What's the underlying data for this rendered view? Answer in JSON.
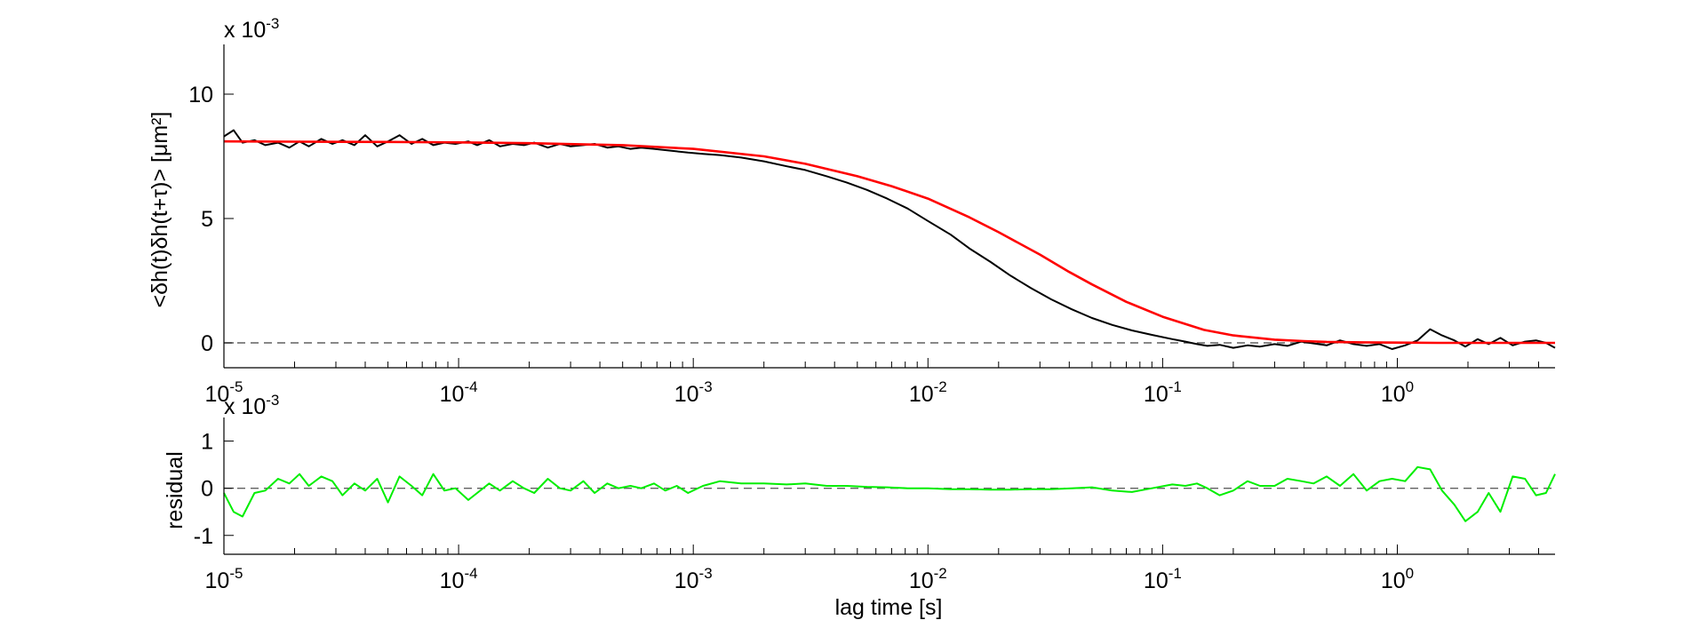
{
  "chart_data": [
    {
      "type": "line",
      "ylabel": "<δh(t)δh(t+τ)> [μm²]",
      "multiplier": {
        "prefix": "x 10",
        "exponent": "-3"
      },
      "xscale": "log",
      "xlim": [
        1e-05,
        4.7
      ],
      "ylim": [
        -1.0,
        12.0
      ],
      "yticks": [
        {
          "v": 0,
          "label": "0"
        },
        {
          "v": 5,
          "label": "5"
        },
        {
          "v": 10,
          "label": "10"
        }
      ],
      "xticks": [
        {
          "v": 1e-05,
          "base": "10",
          "exp": "-5"
        },
        {
          "v": 0.0001,
          "base": "10",
          "exp": "-4"
        },
        {
          "v": 0.001,
          "base": "10",
          "exp": "-3"
        },
        {
          "v": 0.01,
          "base": "10",
          "exp": "-2"
        },
        {
          "v": 0.1,
          "base": "10",
          "exp": "-1"
        },
        {
          "v": 1,
          "base": "10",
          "exp": "0"
        }
      ],
      "reference_line": {
        "y": 0,
        "style": "dashed",
        "color": "#606060"
      },
      "series": [
        {
          "role": "data",
          "color": "#000000",
          "x": [
            1e-05,
            1.1e-05,
            1.2e-05,
            1.35e-05,
            1.5e-05,
            1.7e-05,
            1.9e-05,
            2.1e-05,
            2.3e-05,
            2.6e-05,
            2.9e-05,
            3.2e-05,
            3.6e-05,
            4e-05,
            4.5e-05,
            5e-05,
            5.6e-05,
            6.3e-05,
            7e-05,
            7.8e-05,
            8.7e-05,
            9.7e-05,
            0.00011,
            0.00012,
            0.000135,
            0.00015,
            0.00017,
            0.00019,
            0.00021,
            0.00024,
            0.00027,
            0.0003,
            0.00034,
            0.00038,
            0.00043,
            0.00048,
            0.00054,
            0.0006,
            0.00068,
            0.00076,
            0.00085,
            0.00095,
            0.0011,
            0.0013,
            0.0016,
            0.002,
            0.0025,
            0.003,
            0.0037,
            0.0045,
            0.0055,
            0.0067,
            0.0082,
            0.01,
            0.0125,
            0.015,
            0.0185,
            0.0225,
            0.0275,
            0.0335,
            0.041,
            0.05,
            0.061,
            0.074,
            0.09,
            0.11,
            0.125,
            0.14,
            0.155,
            0.175,
            0.2,
            0.23,
            0.26,
            0.3,
            0.34,
            0.39,
            0.44,
            0.5,
            0.57,
            0.65,
            0.74,
            0.84,
            0.95,
            1.08,
            1.22,
            1.38,
            1.55,
            1.75,
            1.95,
            2.2,
            2.45,
            2.75,
            3.1,
            3.5,
            3.9,
            4.3,
            4.7
          ],
          "y": [
            8.3,
            8.55,
            8.05,
            8.15,
            7.95,
            8.05,
            7.85,
            8.1,
            7.9,
            8.2,
            8.0,
            8.15,
            7.95,
            8.35,
            7.9,
            8.1,
            8.35,
            8.0,
            8.2,
            7.95,
            8.05,
            8.0,
            8.1,
            7.95,
            8.15,
            7.9,
            8.0,
            7.95,
            8.05,
            7.85,
            8.0,
            7.9,
            7.95,
            8.0,
            7.85,
            7.9,
            7.8,
            7.85,
            7.8,
            7.75,
            7.7,
            7.65,
            7.6,
            7.55,
            7.45,
            7.3,
            7.1,
            6.95,
            6.7,
            6.45,
            6.15,
            5.8,
            5.4,
            4.9,
            4.35,
            3.8,
            3.25,
            2.7,
            2.2,
            1.75,
            1.35,
            1.0,
            0.72,
            0.5,
            0.32,
            0.15,
            0.05,
            -0.05,
            -0.12,
            -0.08,
            -0.2,
            -0.1,
            -0.15,
            -0.05,
            -0.12,
            0.05,
            -0.02,
            -0.1,
            0.1,
            -0.05,
            -0.12,
            -0.05,
            -0.25,
            -0.1,
            0.1,
            0.55,
            0.3,
            0.1,
            -0.15,
            0.15,
            -0.05,
            0.2,
            -0.1,
            0.05,
            0.1,
            0.0,
            -0.2
          ]
        },
        {
          "role": "fit",
          "color": "#ff0000",
          "x": [
            1e-05,
            2e-05,
            5e-05,
            0.0001,
            0.0002,
            0.0005,
            0.001,
            0.002,
            0.003,
            0.005,
            0.007,
            0.01,
            0.015,
            0.02,
            0.03,
            0.04,
            0.05,
            0.07,
            0.1,
            0.15,
            0.2,
            0.3,
            0.4,
            0.5,
            0.7,
            1,
            1.5,
            2,
            3,
            4.7
          ],
          "y": [
            8.1,
            8.09,
            8.08,
            8.06,
            8.03,
            7.95,
            7.8,
            7.5,
            7.2,
            6.7,
            6.3,
            5.8,
            5.05,
            4.45,
            3.55,
            2.85,
            2.35,
            1.65,
            1.05,
            0.52,
            0.3,
            0.13,
            0.07,
            0.04,
            0.02,
            0.01,
            0.0,
            0.0,
            0.0,
            0.0
          ]
        }
      ]
    },
    {
      "type": "line",
      "ylabel": "residual",
      "xlabel": "lag time [s]",
      "multiplier": {
        "prefix": "x 10",
        "exponent": "-3"
      },
      "xscale": "log",
      "xlim": [
        1e-05,
        4.7
      ],
      "ylim": [
        -1.4,
        1.5
      ],
      "yticks": [
        {
          "v": -1,
          "label": "-1"
        },
        {
          "v": 0,
          "label": "0"
        },
        {
          "v": 1,
          "label": "1"
        }
      ],
      "xticks": [
        {
          "v": 1e-05,
          "base": "10",
          "exp": "-5"
        },
        {
          "v": 0.0001,
          "base": "10",
          "exp": "-4"
        },
        {
          "v": 0.001,
          "base": "10",
          "exp": "-3"
        },
        {
          "v": 0.01,
          "base": "10",
          "exp": "-2"
        },
        {
          "v": 0.1,
          "base": "10",
          "exp": "-1"
        },
        {
          "v": 1,
          "base": "10",
          "exp": "0"
        }
      ],
      "reference_line": {
        "y": 0,
        "style": "dashed",
        "color": "#606060"
      },
      "series": [
        {
          "role": "residual",
          "color": "#00ee00",
          "x": [
            1e-05,
            1.1e-05,
            1.2e-05,
            1.35e-05,
            1.5e-05,
            1.7e-05,
            1.9e-05,
            2.1e-05,
            2.3e-05,
            2.6e-05,
            2.9e-05,
            3.2e-05,
            3.6e-05,
            4e-05,
            4.5e-05,
            5e-05,
            5.6e-05,
            6.3e-05,
            7e-05,
            7.8e-05,
            8.7e-05,
            9.7e-05,
            0.00011,
            0.00012,
            0.000135,
            0.00015,
            0.00017,
            0.00019,
            0.00021,
            0.00024,
            0.00027,
            0.0003,
            0.00034,
            0.00038,
            0.00043,
            0.00048,
            0.00054,
            0.0006,
            0.00068,
            0.00076,
            0.00085,
            0.00095,
            0.0011,
            0.0013,
            0.0016,
            0.002,
            0.0025,
            0.003,
            0.0037,
            0.0045,
            0.0055,
            0.0067,
            0.0082,
            0.01,
            0.0125,
            0.015,
            0.0185,
            0.0225,
            0.0275,
            0.0335,
            0.041,
            0.05,
            0.061,
            0.074,
            0.09,
            0.11,
            0.125,
            0.14,
            0.155,
            0.175,
            0.2,
            0.23,
            0.26,
            0.3,
            0.34,
            0.39,
            0.44,
            0.5,
            0.57,
            0.65,
            0.74,
            0.84,
            0.95,
            1.08,
            1.22,
            1.38,
            1.55,
            1.75,
            1.95,
            2.2,
            2.45,
            2.75,
            3.1,
            3.5,
            3.9,
            4.3,
            4.7
          ],
          "y": [
            -0.1,
            -0.5,
            -0.6,
            -0.1,
            -0.05,
            0.2,
            0.1,
            0.3,
            0.05,
            0.25,
            0.15,
            -0.15,
            0.1,
            -0.05,
            0.2,
            -0.3,
            0.25,
            0.05,
            -0.15,
            0.3,
            -0.05,
            0.0,
            -0.25,
            -0.1,
            0.1,
            -0.05,
            0.15,
            0.0,
            -0.1,
            0.2,
            0.0,
            -0.05,
            0.15,
            -0.1,
            0.1,
            0.0,
            0.05,
            0.0,
            0.1,
            -0.05,
            0.05,
            -0.1,
            0.05,
            0.15,
            0.1,
            0.1,
            0.08,
            0.1,
            0.05,
            0.05,
            0.03,
            0.02,
            0.0,
            0.0,
            -0.02,
            -0.02,
            -0.03,
            -0.03,
            -0.02,
            -0.02,
            0.0,
            0.02,
            -0.05,
            -0.08,
            0.0,
            0.08,
            0.05,
            0.1,
            0.0,
            -0.15,
            -0.05,
            0.15,
            0.05,
            0.05,
            0.2,
            0.15,
            0.1,
            0.25,
            0.05,
            0.3,
            -0.05,
            0.15,
            0.2,
            0.15,
            0.45,
            0.4,
            -0.05,
            -0.35,
            -0.7,
            -0.5,
            -0.1,
            -0.5,
            0.25,
            0.2,
            -0.15,
            -0.1,
            0.3
          ]
        }
      ]
    }
  ]
}
